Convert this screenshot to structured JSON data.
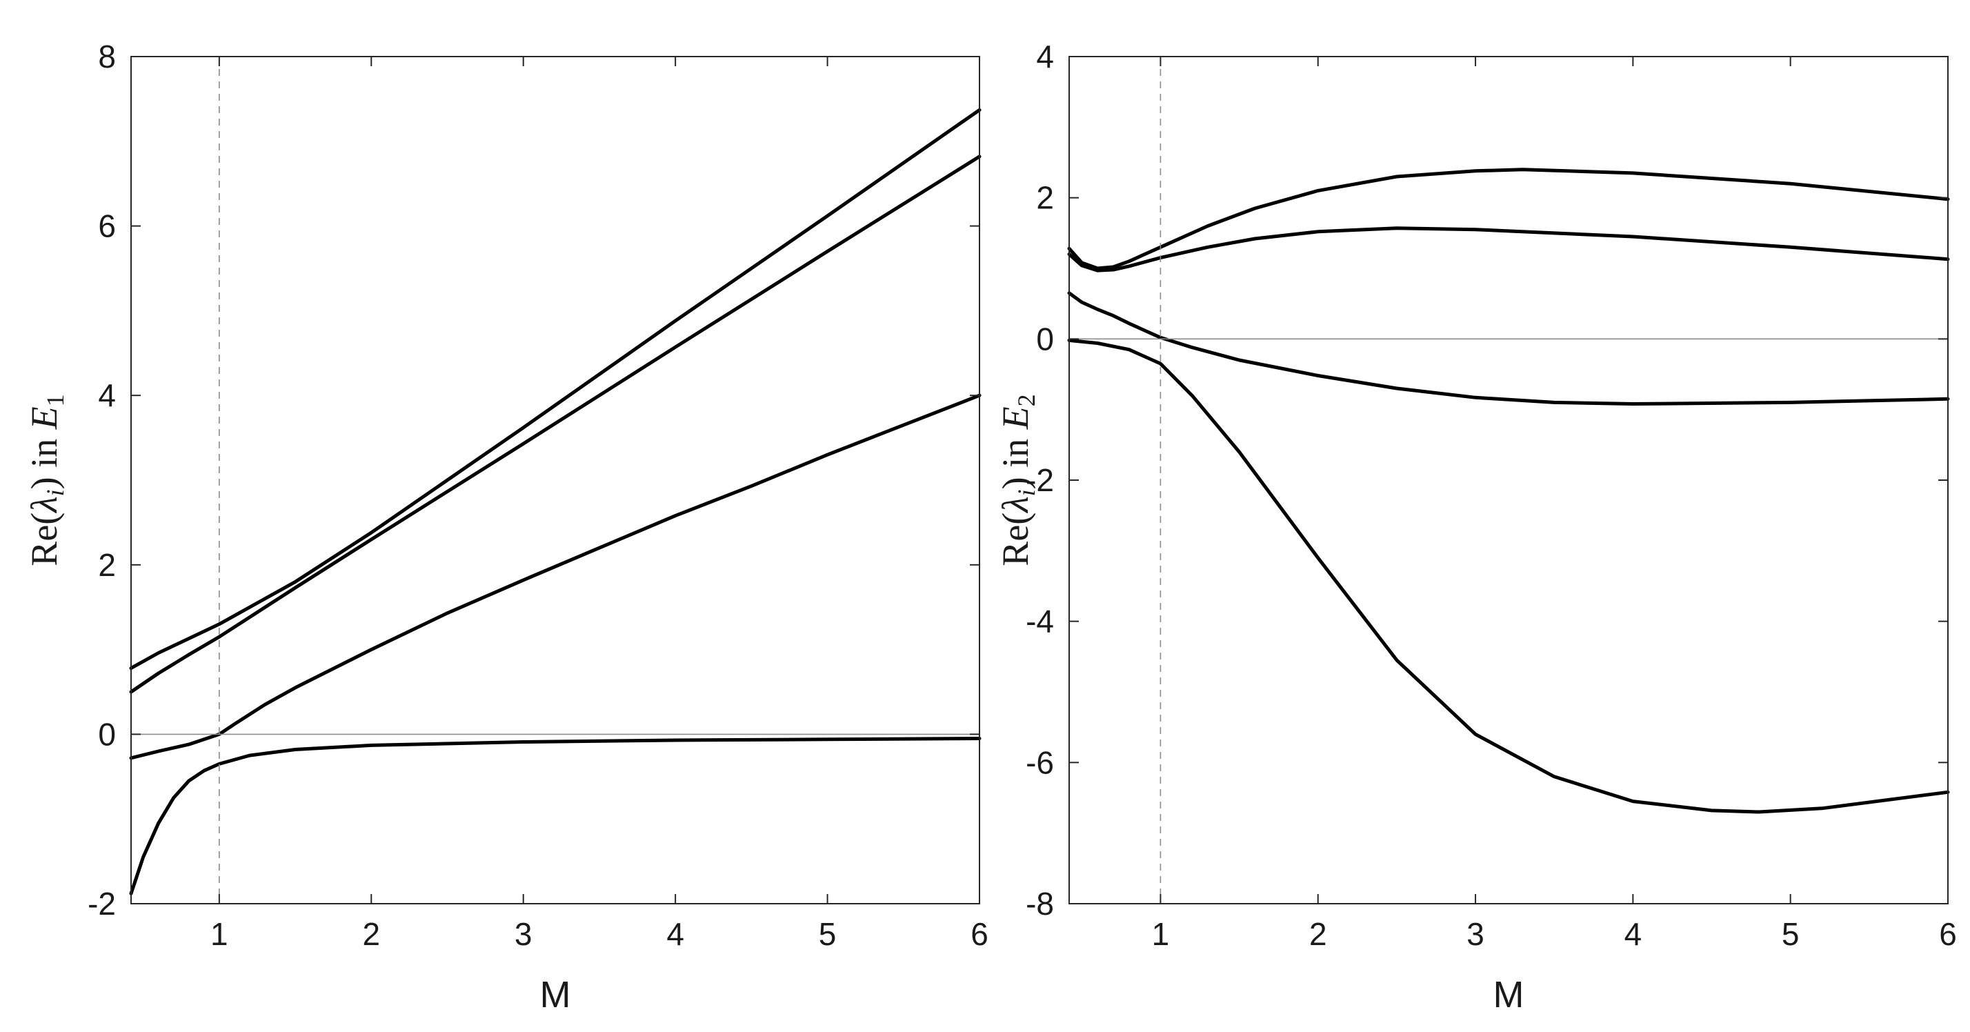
{
  "chart_data": [
    {
      "type": "line",
      "xlabel": "M",
      "ylabel": {
        "prefix": "Re(",
        "symbol": "λ",
        "symbol_sub": "i",
        "mid": ") in ",
        "space": "E",
        "space_sub": "1"
      },
      "xlim": [
        0.42,
        6
      ],
      "ylim": [
        -2,
        8
      ],
      "xticks": [
        1,
        2,
        3,
        4,
        5,
        6
      ],
      "yticks": [
        -2,
        0,
        2,
        4,
        6,
        8
      ],
      "reference_lines": {
        "horizontal_y": 0,
        "vertical_dashed_x": 1
      },
      "grid": false,
      "line_color": "#000000",
      "series": [
        {
          "x": [
            0.42,
            0.6,
            0.8,
            1.0,
            1.5,
            2.0,
            3.0,
            4.0,
            5.0,
            6.0
          ],
          "y": [
            0.78,
            0.96,
            1.13,
            1.3,
            1.8,
            2.38,
            3.62,
            4.88,
            6.12,
            7.37
          ]
        },
        {
          "x": [
            0.42,
            0.6,
            0.8,
            1.0,
            1.5,
            2.0,
            3.0,
            4.0,
            5.0,
            6.0
          ],
          "y": [
            0.5,
            0.72,
            0.94,
            1.15,
            1.73,
            2.3,
            3.43,
            4.57,
            5.7,
            6.82
          ]
        },
        {
          "x": [
            0.42,
            0.6,
            0.8,
            1.0,
            1.1,
            1.3,
            1.5,
            2.0,
            2.5,
            3.0,
            3.5,
            4.0,
            4.5,
            5.0,
            5.5,
            6.0
          ],
          "y": [
            -0.28,
            -0.2,
            -0.12,
            0.0,
            0.12,
            0.35,
            0.55,
            1.0,
            1.43,
            1.82,
            2.2,
            2.58,
            2.93,
            3.3,
            3.65,
            4.0
          ]
        },
        {
          "x": [
            0.42,
            0.5,
            0.6,
            0.7,
            0.8,
            0.9,
            1.0,
            1.2,
            1.5,
            2.0,
            3.0,
            4.0,
            5.0,
            6.0
          ],
          "y": [
            -1.88,
            -1.45,
            -1.05,
            -0.75,
            -0.55,
            -0.43,
            -0.35,
            -0.25,
            -0.18,
            -0.13,
            -0.09,
            -0.07,
            -0.06,
            -0.05
          ]
        }
      ]
    },
    {
      "type": "line",
      "xlabel": "M",
      "ylabel": {
        "prefix": "Re(",
        "symbol": "λ",
        "symbol_sub": "i",
        "mid": ") in ",
        "space": "E",
        "space_sub": "2"
      },
      "xlim": [
        0.42,
        6
      ],
      "ylim": [
        -8,
        4
      ],
      "xticks": [
        1,
        2,
        3,
        4,
        5,
        6
      ],
      "yticks": [
        -8,
        -6,
        -4,
        -2,
        0,
        2,
        4
      ],
      "reference_lines": {
        "horizontal_y": 0,
        "vertical_dashed_x": 1
      },
      "grid": false,
      "line_color": "#000000",
      "series": [
        {
          "x": [
            0.42,
            0.5,
            0.6,
            0.7,
            0.8,
            1.0,
            1.3,
            1.6,
            2.0,
            2.5,
            3.0,
            3.3,
            4.0,
            5.0,
            6.0
          ],
          "y": [
            1.28,
            1.08,
            1.0,
            1.02,
            1.1,
            1.3,
            1.6,
            1.85,
            2.1,
            2.3,
            2.38,
            2.4,
            2.35,
            2.2,
            1.98
          ]
        },
        {
          "x": [
            0.42,
            0.5,
            0.6,
            0.7,
            0.8,
            1.0,
            1.3,
            1.6,
            2.0,
            2.5,
            3.0,
            4.0,
            5.0,
            6.0
          ],
          "y": [
            1.2,
            1.04,
            0.97,
            0.98,
            1.03,
            1.15,
            1.3,
            1.42,
            1.52,
            1.57,
            1.55,
            1.45,
            1.3,
            1.13
          ]
        },
        {
          "x": [
            0.42,
            0.5,
            0.6,
            0.7,
            0.8,
            0.9,
            1.0,
            1.2,
            1.5,
            2.0,
            2.5,
            3.0,
            3.5,
            4.0,
            5.0,
            6.0
          ],
          "y": [
            0.65,
            0.52,
            0.42,
            0.33,
            0.22,
            0.12,
            0.02,
            -0.12,
            -0.3,
            -0.52,
            -0.7,
            -0.83,
            -0.9,
            -0.92,
            -0.9,
            -0.85
          ]
        },
        {
          "x": [
            0.42,
            0.6,
            0.8,
            1.0,
            1.2,
            1.5,
            2.0,
            2.5,
            3.0,
            3.5,
            4.0,
            4.5,
            4.8,
            5.2,
            6.0
          ],
          "y": [
            -0.02,
            -0.06,
            -0.15,
            -0.35,
            -0.8,
            -1.6,
            -3.1,
            -4.55,
            -5.6,
            -6.2,
            -6.55,
            -6.68,
            -6.7,
            -6.65,
            -6.42
          ]
        }
      ]
    }
  ]
}
